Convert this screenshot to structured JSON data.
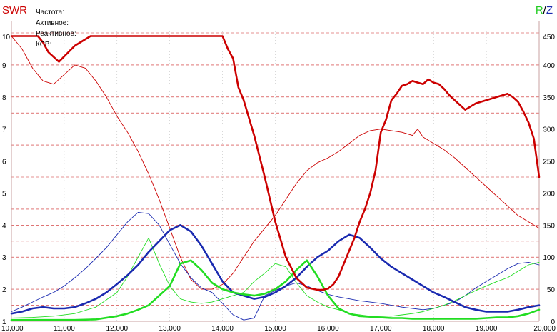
{
  "header": {
    "swr_label": "SWR",
    "r_label": "R",
    "slash": "/",
    "z_label": "Z"
  },
  "legend": {
    "frequency": "Частота:",
    "active": "Активное:",
    "reactive": "Реактивное:",
    "vswr": "КСВ:"
  },
  "colors": {
    "swr": "#cc0000",
    "r": "#22dd22",
    "z": "#1a2ab0",
    "grid": "#cc2222",
    "frame": "#c8a0a0"
  },
  "chart_data": {
    "type": "line",
    "grid": true,
    "xlim": [
      10000,
      20000
    ],
    "x_ticks": [
      "10,000",
      "11,000",
      "12,000",
      "13,000",
      "14,000",
      "15,000",
      "16,000",
      "17,000",
      "18,000",
      "19,000",
      "20,000"
    ],
    "y_left": {
      "label": "SWR",
      "lim": [
        1,
        10
      ],
      "ticks": [
        "1",
        "2",
        "3",
        "4",
        "5",
        "6",
        "7",
        "8",
        "9",
        "10"
      ]
    },
    "y_right": {
      "label": "R / Z",
      "lim": [
        0,
        450
      ],
      "ticks": [
        "0",
        "50",
        "100",
        "150",
        "200",
        "250",
        "300",
        "350",
        "400",
        "450"
      ]
    },
    "series": [
      {
        "name": "SWR",
        "axis": "left",
        "color": "#cc0000",
        "style": "thick",
        "x": [
          10000,
          10400,
          10500,
          10600,
          10700,
          10900,
          11200,
          11500,
          11800,
          12100,
          12300,
          12400,
          12500,
          12700,
          12900,
          13100,
          13300,
          13500,
          13700,
          13900,
          14000,
          14100,
          14200,
          14300,
          14400,
          14600,
          14800,
          15000,
          15200,
          15400,
          15600,
          15800,
          15900,
          16000,
          16100,
          16200,
          16300,
          16400,
          16500,
          16600,
          16700,
          16800,
          16900,
          17000,
          17100,
          17200,
          17300,
          17400,
          17500,
          17600,
          17700,
          17800,
          17900,
          18000,
          18100,
          18200,
          18300,
          18400,
          18500,
          18600,
          18700,
          18800,
          18900,
          19000,
          19100,
          19200,
          19300,
          19400,
          19500,
          19600,
          19700,
          19800,
          19900,
          20000
        ],
        "values": [
          9.9,
          9.9,
          9.9,
          9.7,
          9.4,
          9.1,
          9.6,
          9.9,
          9.9,
          9.9,
          9.9,
          9.9,
          9.9,
          9.9,
          9.9,
          9.9,
          9.9,
          9.9,
          9.9,
          9.9,
          9.9,
          9.5,
          9.2,
          8.3,
          7.9,
          6.8,
          5.5,
          4.1,
          3.0,
          2.35,
          2.05,
          1.98,
          1.98,
          2.02,
          2.15,
          2.4,
          2.8,
          3.2,
          3.6,
          4.1,
          4.5,
          5.0,
          5.7,
          6.9,
          7.3,
          7.9,
          8.1,
          8.35,
          8.4,
          8.5,
          8.45,
          8.4,
          8.55,
          8.45,
          8.4,
          8.25,
          8.05,
          7.9,
          7.75,
          7.6,
          7.7,
          7.8,
          7.85,
          7.9,
          7.95,
          8.0,
          8.05,
          8.1,
          8.0,
          7.85,
          7.55,
          7.2,
          6.7,
          5.5
        ],
        "values_estimated": true
      },
      {
        "name": "SWR (thin)",
        "axis": "left",
        "color": "#cc0000",
        "style": "thin",
        "x": [
          10000,
          10200,
          10400,
          10600,
          10800,
          11000,
          11200,
          11400,
          11600,
          11800,
          12000,
          12200,
          12400,
          12600,
          12800,
          13000,
          13200,
          13400,
          13600,
          13800,
          14000,
          14200,
          14400,
          14600,
          14800,
          15000,
          15200,
          15400,
          15600,
          15800,
          16000,
          16200,
          16400,
          16600,
          16800,
          17000,
          17200,
          17400,
          17600,
          17700,
          17800,
          18000,
          18200,
          18400,
          18600,
          18800,
          19000,
          19200,
          19400,
          19600,
          19800,
          20000
        ],
        "values": [
          9.9,
          9.5,
          8.9,
          8.5,
          8.4,
          8.7,
          9.0,
          8.9,
          8.5,
          8.0,
          7.4,
          6.9,
          6.3,
          5.6,
          4.8,
          3.9,
          3.0,
          2.3,
          2.0,
          2.0,
          2.15,
          2.5,
          3.0,
          3.5,
          3.9,
          4.3,
          4.8,
          5.3,
          5.7,
          5.95,
          6.1,
          6.3,
          6.55,
          6.8,
          6.95,
          7.0,
          6.95,
          6.9,
          6.8,
          7.0,
          6.75,
          6.55,
          6.35,
          6.1,
          5.8,
          5.5,
          5.2,
          4.9,
          4.6,
          4.3,
          4.1,
          3.9
        ],
        "values_estimated": true
      },
      {
        "name": "Z",
        "axis": "right",
        "color": "#1a2ab0",
        "style": "thick",
        "x": [
          10000,
          10200,
          10400,
          10600,
          10800,
          11000,
          11200,
          11400,
          11600,
          11800,
          12000,
          12200,
          12400,
          12600,
          12800,
          13000,
          13200,
          13400,
          13600,
          13800,
          14000,
          14200,
          14400,
          14600,
          14800,
          15000,
          15200,
          15400,
          15600,
          15800,
          16000,
          16200,
          16400,
          16600,
          16800,
          17000,
          17200,
          17400,
          17600,
          17800,
          18000,
          18200,
          18400,
          18600,
          18800,
          19000,
          19200,
          19400,
          19600,
          19800,
          20000
        ],
        "values": [
          12,
          15,
          20,
          22,
          20,
          20,
          22,
          28,
          35,
          45,
          58,
          72,
          88,
          108,
          125,
          142,
          150,
          140,
          118,
          90,
          62,
          45,
          40,
          35,
          38,
          45,
          55,
          68,
          85,
          100,
          110,
          125,
          135,
          130,
          115,
          98,
          85,
          75,
          65,
          55,
          45,
          38,
          30,
          22,
          18,
          15,
          15,
          15,
          18,
          22,
          25
        ],
        "values_estimated": true
      },
      {
        "name": "Z (thin)",
        "axis": "right",
        "color": "#1a2ab0",
        "style": "thin",
        "x": [
          10000,
          10200,
          10400,
          10600,
          10800,
          11000,
          11200,
          11400,
          11600,
          11800,
          12000,
          12200,
          12400,
          12600,
          12800,
          13000,
          13200,
          13400,
          13600,
          13800,
          14000,
          14200,
          14400,
          14600,
          14800,
          15000,
          15200,
          15400,
          15600,
          15800,
          16000,
          16200,
          16400,
          16600,
          16800,
          17000,
          17200,
          17400,
          17600,
          17800,
          18000,
          18200,
          18400,
          18600,
          18800,
          19000,
          19200,
          19400,
          19600,
          19800,
          20000
        ],
        "values": [
          15,
          22,
          30,
          38,
          45,
          55,
          68,
          82,
          98,
          115,
          135,
          155,
          170,
          168,
          150,
          120,
          90,
          68,
          52,
          45,
          28,
          10,
          2,
          5,
          40,
          48,
          55,
          60,
          55,
          48,
          42,
          38,
          35,
          32,
          30,
          28,
          25,
          22,
          20,
          18,
          20,
          25,
          30,
          40,
          52,
          62,
          72,
          82,
          90,
          92,
          88
        ],
        "values_estimated": true
      },
      {
        "name": "R",
        "axis": "right",
        "color": "#22dd22",
        "style": "thick",
        "x": [
          10000,
          10400,
          10800,
          11200,
          11600,
          12000,
          12200,
          12400,
          12600,
          12800,
          13000,
          13200,
          13400,
          13600,
          13800,
          14000,
          14200,
          14400,
          14600,
          14800,
          15000,
          15200,
          15400,
          15600,
          15800,
          16000,
          16200,
          16400,
          16600,
          16800,
          17000,
          17200,
          17400,
          17600,
          17800,
          18000,
          18200,
          18400,
          18600,
          18800,
          19000,
          19200,
          19400,
          19600,
          19800,
          20000
        ],
        "values": [
          2,
          2,
          2,
          2,
          3,
          8,
          12,
          18,
          25,
          40,
          55,
          90,
          95,
          80,
          60,
          50,
          45,
          42,
          40,
          43,
          50,
          62,
          80,
          95,
          70,
          40,
          20,
          12,
          8,
          7,
          6,
          5,
          5,
          4,
          4,
          4,
          4,
          4,
          4,
          4,
          5,
          6,
          6,
          8,
          12,
          18
        ],
        "values_estimated": true
      },
      {
        "name": "R (thin)",
        "axis": "right",
        "color": "#22dd22",
        "style": "thin",
        "x": [
          10000,
          10400,
          10800,
          11200,
          11600,
          12000,
          12200,
          12400,
          12600,
          12800,
          13000,
          13200,
          13400,
          13600,
          13800,
          14000,
          14200,
          14400,
          14600,
          14800,
          15000,
          15200,
          15400,
          15600,
          15800,
          16000,
          16200,
          16400,
          16600,
          16800,
          17000,
          17200,
          17400,
          17600,
          17800,
          18000,
          18200,
          18400,
          18600,
          18800,
          19000,
          19200,
          19400,
          19600,
          19800,
          20000
        ],
        "values": [
          5,
          6,
          8,
          12,
          22,
          45,
          70,
          100,
          130,
          90,
          55,
          35,
          30,
          28,
          30,
          35,
          40,
          45,
          62,
          75,
          90,
          85,
          60,
          40,
          30,
          22,
          18,
          12,
          10,
          8,
          8,
          8,
          10,
          12,
          15,
          20,
          25,
          32,
          40,
          48,
          55,
          62,
          68,
          78,
          88,
          92
        ],
        "values_estimated": true
      }
    ]
  }
}
